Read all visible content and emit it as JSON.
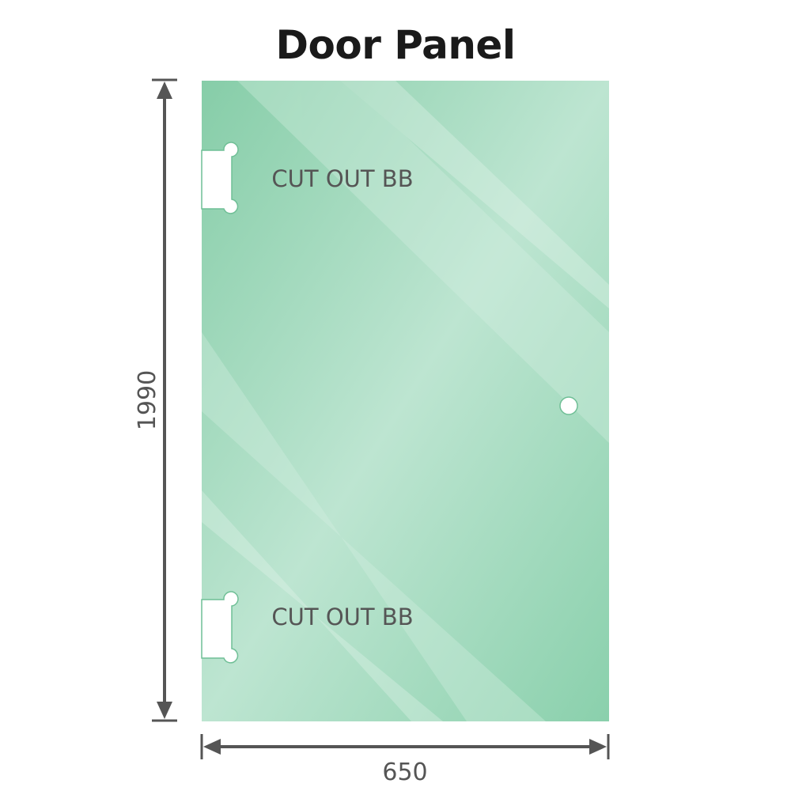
{
  "title": "Door Panel",
  "dimensions": {
    "height": "1990",
    "width": "650"
  },
  "cutouts": [
    {
      "label": "CUT OUT BB"
    },
    {
      "label": "CUT OUT BB"
    }
  ],
  "colors": {
    "glass": "#8acfab",
    "glass_highlight": "#bfe6d3",
    "dimension_line": "#555555"
  }
}
